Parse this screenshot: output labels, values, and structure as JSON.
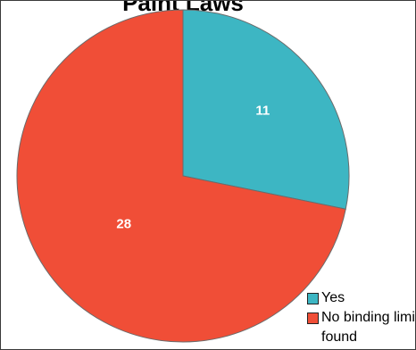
{
  "chart_data": {
    "type": "pie",
    "title": "Paint Laws",
    "categories": [
      "Yes",
      "No binding limit found"
    ],
    "values": [
      11,
      28
    ],
    "colors": [
      "#3db6c3",
      "#f04e37"
    ],
    "data_labels": [
      "11",
      "28"
    ],
    "start_angle_deg": 0,
    "direction": "clockwise",
    "legend_position": "bottom-right"
  }
}
